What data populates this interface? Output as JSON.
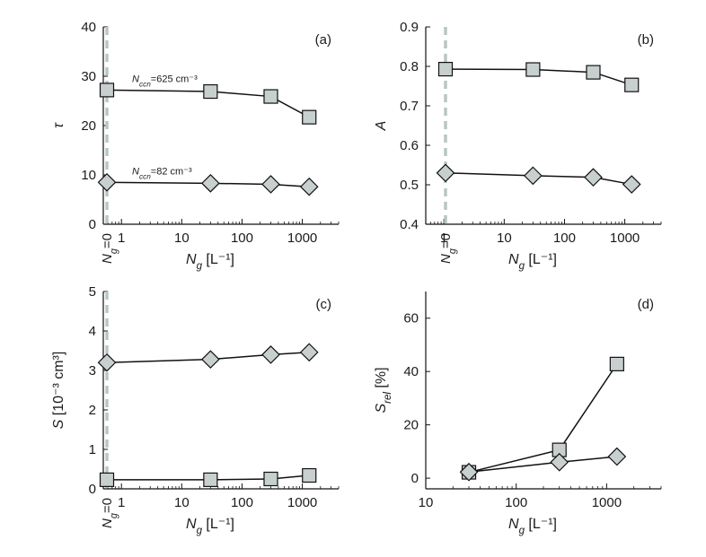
{
  "colors": {
    "marker_fill": "#c8cfcf",
    "marker_stroke": "#111111",
    "line": "#111111",
    "reference_line": "#b9c6c6",
    "axis": "#111111"
  },
  "chart_data": [
    {
      "type": "line",
      "panel": "(a)",
      "ylabel": "τ",
      "xlabel": "N_g [L⁻¹]",
      "x_scale": "log",
      "xlim": [
        0.5,
        4000
      ],
      "ylim": [
        0,
        40
      ],
      "x_ticks": [
        "1",
        "10",
        "100",
        "1000"
      ],
      "y_ticks": [
        "0",
        "10",
        "20",
        "30",
        "40"
      ],
      "reference_line": {
        "label": "N_g=0",
        "style": "dashed vertical"
      },
      "series": [
        {
          "name": "N_ccn=625 cm⁻³",
          "marker": "square",
          "points": [
            [
              "N_g=0",
              27.2
            ],
            [
              30,
              26.9
            ],
            [
              300,
              25.9
            ],
            [
              1300,
              21.7
            ]
          ]
        },
        {
          "name": "N_ccn=82 cm⁻³",
          "marker": "diamond",
          "points": [
            [
              "N_g=0",
              8.5
            ],
            [
              30,
              8.3
            ],
            [
              300,
              8.1
            ],
            [
              1300,
              7.6
            ]
          ]
        }
      ]
    },
    {
      "type": "line",
      "panel": "(b)",
      "ylabel": "A",
      "xlabel": "N_g [L⁻¹]",
      "x_scale": "log",
      "xlim": [
        0.5,
        4000
      ],
      "ylim": [
        0.4,
        0.9
      ],
      "x_ticks": [
        "1",
        "10",
        "100",
        "1000"
      ],
      "y_ticks": [
        "0.4",
        "0.5",
        "0.6",
        "0.7",
        "0.8",
        "0.9"
      ],
      "reference_line": {
        "label": "N_g=0",
        "style": "dashed vertical"
      },
      "series": [
        {
          "marker": "square",
          "points": [
            [
              "N_g=0",
              0.793
            ],
            [
              30,
              0.792
            ],
            [
              300,
              0.785
            ],
            [
              1300,
              0.753
            ]
          ]
        },
        {
          "marker": "diamond",
          "points": [
            [
              "N_g=0",
              0.53
            ],
            [
              30,
              0.523
            ],
            [
              300,
              0.519
            ],
            [
              1300,
              0.501
            ]
          ]
        }
      ]
    },
    {
      "type": "line",
      "panel": "(c)",
      "ylabel": "S [10⁻³ cm³]",
      "xlabel": "N_g [L⁻¹]",
      "x_scale": "log",
      "xlim": [
        0.5,
        4000
      ],
      "ylim": [
        0,
        5
      ],
      "x_ticks": [
        "1",
        "10",
        "100",
        "1000"
      ],
      "y_ticks": [
        "0",
        "1",
        "2",
        "3",
        "4",
        "5"
      ],
      "reference_line": {
        "label": "N_g=0",
        "style": "dashed vertical"
      },
      "series": [
        {
          "marker": "diamond",
          "points": [
            [
              "N_g=0",
              3.2
            ],
            [
              30,
              3.28
            ],
            [
              300,
              3.4
            ],
            [
              1300,
              3.46
            ]
          ]
        },
        {
          "marker": "square",
          "points": [
            [
              "N_g=0",
              0.23
            ],
            [
              30,
              0.23
            ],
            [
              300,
              0.25
            ],
            [
              1300,
              0.34
            ]
          ]
        }
      ]
    },
    {
      "type": "line",
      "panel": "(d)",
      "ylabel": "S_rel [%]",
      "xlabel": "N_g [L⁻¹]",
      "x_scale": "log",
      "xlim": [
        10,
        4000
      ],
      "ylim": [
        -4,
        70
      ],
      "x_ticks": [
        "10",
        "100",
        "1000"
      ],
      "y_ticks": [
        "0",
        "20",
        "40",
        "60"
      ],
      "series": [
        {
          "marker": "square",
          "points": [
            [
              30,
              2.2
            ],
            [
              300,
              10.6
            ],
            [
              1300,
              42.8
            ]
          ]
        },
        {
          "marker": "diamond",
          "points": [
            [
              30,
              2.3
            ],
            [
              300,
              6.0
            ],
            [
              1300,
              8.1
            ]
          ]
        }
      ]
    }
  ]
}
